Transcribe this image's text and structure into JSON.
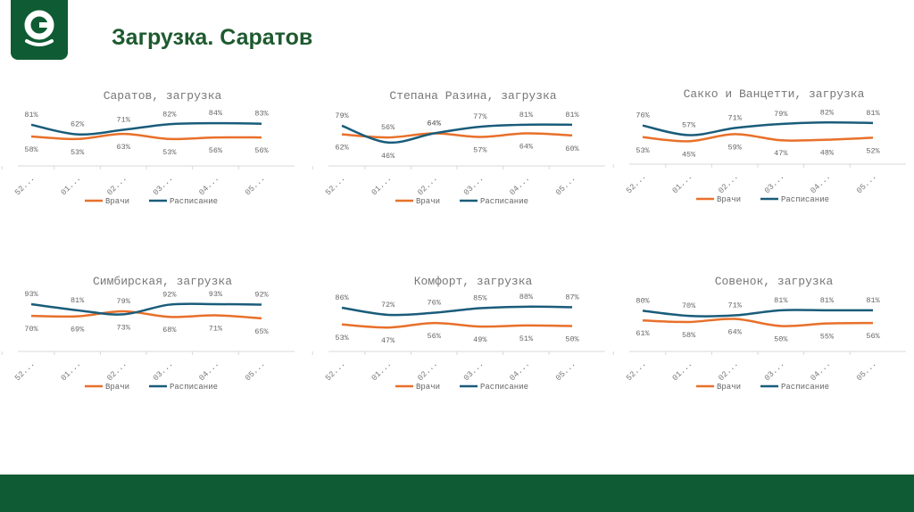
{
  "header": {
    "title": "Загрузка. Саратов",
    "logo": "green C logo"
  },
  "colors": {
    "doctors": "#e8702a",
    "schedule": "#1a5c7a",
    "brand": "#0f5b33"
  },
  "chart_data": [
    {
      "type": "line",
      "title": "Саратов, загрузка",
      "categories": [
        "52...",
        "01...",
        "02...",
        "03...",
        "04...",
        "05..."
      ],
      "ylim": [
        0,
        100
      ],
      "unit": "%",
      "legend": "bottom",
      "grid": false,
      "series": [
        {
          "name": "Врачи",
          "values": [
            58,
            53,
            63,
            53,
            56,
            56
          ]
        },
        {
          "name": "Расписание",
          "values": [
            81,
            62,
            71,
            82,
            84,
            83
          ]
        }
      ]
    },
    {
      "type": "line",
      "title": "Степана Разина, загрузка",
      "categories": [
        "52...",
        "01...",
        "02...",
        "03...",
        "04...",
        "05..."
      ],
      "ylim": [
        0,
        100
      ],
      "unit": "%",
      "legend": "bottom",
      "grid": false,
      "series": [
        {
          "name": "Врачи",
          "values": [
            62,
            56,
            64,
            57,
            64,
            60
          ]
        },
        {
          "name": "Расписание",
          "values": [
            79,
            46,
            64,
            77,
            81,
            81
          ]
        }
      ]
    },
    {
      "type": "line",
      "title": "Сакко и Ванцетти, загрузка",
      "categories": [
        "52...",
        "01...",
        "02...",
        "03...",
        "04...",
        "05..."
      ],
      "ylim": [
        0,
        100
      ],
      "unit": "%",
      "legend": "bottom",
      "grid": false,
      "series": [
        {
          "name": "Врачи",
          "values": [
            53,
            45,
            59,
            47,
            48,
            52
          ]
        },
        {
          "name": "Расписание",
          "values": [
            76,
            57,
            71,
            79,
            82,
            81
          ]
        }
      ]
    },
    {
      "type": "line",
      "title": "Симбирская, загрузка",
      "categories": [
        "52...",
        "01...",
        "02...",
        "03...",
        "04...",
        "05..."
      ],
      "ylim": [
        0,
        100
      ],
      "unit": "%",
      "legend": "bottom",
      "grid": false,
      "series": [
        {
          "name": "Врачи",
          "values": [
            70,
            69,
            79,
            68,
            71,
            65
          ]
        },
        {
          "name": "Расписание",
          "values": [
            93,
            81,
            73,
            92,
            93,
            92
          ]
        }
      ]
    },
    {
      "type": "line",
      "title": "Комфорт, загрузка",
      "categories": [
        "52...",
        "01...",
        "02...",
        "03...",
        "04...",
        "05..."
      ],
      "ylim": [
        0,
        100
      ],
      "unit": "%",
      "legend": "bottom",
      "grid": false,
      "series": [
        {
          "name": "Врачи",
          "values": [
            53,
            47,
            56,
            49,
            51,
            50
          ]
        },
        {
          "name": "Расписание",
          "values": [
            86,
            72,
            76,
            85,
            88,
            87
          ]
        }
      ]
    },
    {
      "type": "line",
      "title": "Совенок, загрузка",
      "categories": [
        "52...",
        "01...",
        "02...",
        "03...",
        "04...",
        "05..."
      ],
      "ylim": [
        0,
        100
      ],
      "unit": "%",
      "legend": "bottom",
      "grid": false,
      "series": [
        {
          "name": "Врачи",
          "values": [
            61,
            58,
            64,
            50,
            55,
            56
          ]
        },
        {
          "name": "Расписание",
          "values": [
            80,
            70,
            71,
            81,
            81,
            81
          ]
        }
      ]
    }
  ]
}
